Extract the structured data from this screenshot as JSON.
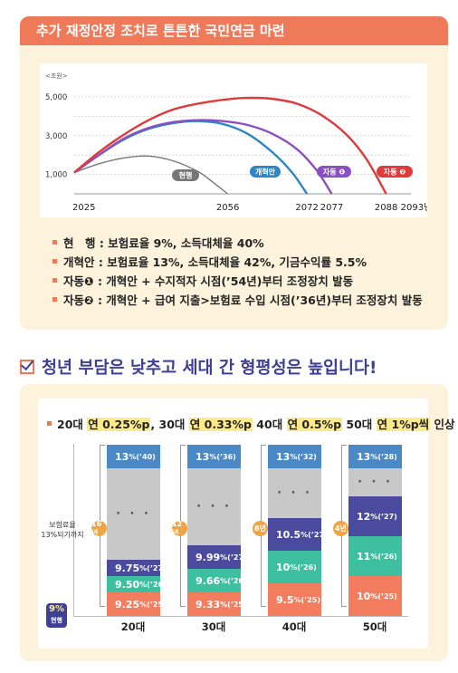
{
  "section1": {
    "title": "추가 재정안정 조치로 튼튼한 국민연금 마련",
    "chart_data": {
      "type": "line",
      "ylabel": "<조원>",
      "yticks": [
        1000,
        3000,
        5000
      ],
      "ytick_labels": [
        "1,000",
        "3,000",
        "5,000"
      ],
      "ylim": [
        0,
        5700
      ],
      "xlim": [
        2025,
        2093
      ],
      "xtick_labels": [
        "2025",
        "2056",
        "2072",
        "2077",
        "2088",
        "2093년"
      ],
      "xticks": [
        2025,
        2056,
        2072,
        2077,
        2088,
        2093
      ],
      "series": [
        {
          "name": "현행",
          "color": "#777777",
          "points": [
            [
              2025,
              1100
            ],
            [
              2030,
              1550
            ],
            [
              2035,
              1850
            ],
            [
              2040,
              1950
            ],
            [
              2045,
              1700
            ],
            [
              2050,
              1150
            ],
            [
              2053,
              600
            ],
            [
              2056,
              0
            ]
          ]
        },
        {
          "name": "개혁안",
          "color": "#2f86c4",
          "points": [
            [
              2025,
              1100
            ],
            [
              2030,
              2000
            ],
            [
              2035,
              2800
            ],
            [
              2040,
              3350
            ],
            [
              2045,
              3650
            ],
            [
              2050,
              3750
            ],
            [
              2055,
              3600
            ],
            [
              2060,
              3100
            ],
            [
              2065,
              2150
            ],
            [
              2069,
              1100
            ],
            [
              2072,
              0
            ]
          ]
        },
        {
          "name": "자동 ❶",
          "color": "#8a4fc2",
          "points": [
            [
              2025,
              1100
            ],
            [
              2030,
              2000
            ],
            [
              2035,
              2850
            ],
            [
              2040,
              3400
            ],
            [
              2045,
              3700
            ],
            [
              2050,
              3800
            ],
            [
              2055,
              3750
            ],
            [
              2060,
              3550
            ],
            [
              2065,
              3100
            ],
            [
              2070,
              2300
            ],
            [
              2074,
              1200
            ],
            [
              2077,
              0
            ]
          ]
        },
        {
          "name": "자동 ❷",
          "color": "#de3b3b",
          "points": [
            [
              2025,
              1100
            ],
            [
              2030,
              2150
            ],
            [
              2035,
              3050
            ],
            [
              2040,
              3800
            ],
            [
              2045,
              4350
            ],
            [
              2050,
              4650
            ],
            [
              2055,
              4850
            ],
            [
              2060,
              4950
            ],
            [
              2065,
              4900
            ],
            [
              2070,
              4650
            ],
            [
              2075,
              4050
            ],
            [
              2080,
              3050
            ],
            [
              2084,
              1800
            ],
            [
              2088,
              0
            ]
          ]
        }
      ]
    },
    "legend": [
      {
        "key": "현　행",
        "text": "보험료율 9%, 소득대체율 40%"
      },
      {
        "key": "개혁안",
        "text": "보험료율 13%, 소득대체율 42%, 기금수익률 5.5%"
      },
      {
        "key": "자동❶",
        "text": "개혁안 + 수지적자 시점(’54년)부터 조정장치 발동"
      },
      {
        "key": "자동❷",
        "text": "개혁안 + 급여 지출>보험료 수입 시점(’36년)부터 조정장치 발동"
      }
    ]
  },
  "section2": {
    "heading": "청년 부담은 낮추고 세대 간 형평성은 높입니다!",
    "subhead": {
      "p1": "20대 ",
      "h1": "연 0.25%p",
      "p2": ", 30대 ",
      "h2": "연 0.33%p",
      "p3": " 40대 ",
      "h3": "연 0.5%p",
      "p4": " 50대 ",
      "h4": "연 1%p씩",
      "p5": " 인상"
    },
    "y_note": "보험료율\n13%되기까지",
    "current": {
      "value": "9%",
      "label": "현행"
    },
    "chart_data": {
      "type": "bar",
      "categories": [
        "20대",
        "30대",
        "40대",
        "50대"
      ],
      "years_to_13": [
        "16년",
        "12년",
        "8년",
        "4년"
      ],
      "stacks": [
        [
          {
            "v": "9.25",
            "y": "’25"
          },
          {
            "v": "9.50",
            "y": "’26"
          },
          {
            "v": "9.75",
            "y": "’27"
          },
          {
            "v": "13",
            "y": "’40"
          }
        ],
        [
          {
            "v": "9.33",
            "y": "’25"
          },
          {
            "v": "9.66",
            "y": "’26"
          },
          {
            "v": "9.99",
            "y": "’27"
          },
          {
            "v": "13",
            "y": "’36"
          }
        ],
        [
          {
            "v": "9.5",
            "y": "’25"
          },
          {
            "v": "10",
            "y": "’26"
          },
          {
            "v": "10.5",
            "y": "’27"
          },
          {
            "v": "13",
            "y": "’32"
          }
        ],
        [
          {
            "v": "10",
            "y": "’25"
          },
          {
            "v": "11",
            "y": "’26"
          },
          {
            "v": "12",
            "y": "’27"
          },
          {
            "v": "13",
            "y": "’28"
          }
        ]
      ],
      "ellipsis": "· · ·"
    },
    "colors": {
      "s25": "#f27d5f",
      "s26": "#3dbfa0",
      "s27": "#4a4a9e",
      "s13": "#4a88c6",
      "gap": "#c8c8c8",
      "accent": "#ef7a5a",
      "years": "#f0a545"
    }
  }
}
